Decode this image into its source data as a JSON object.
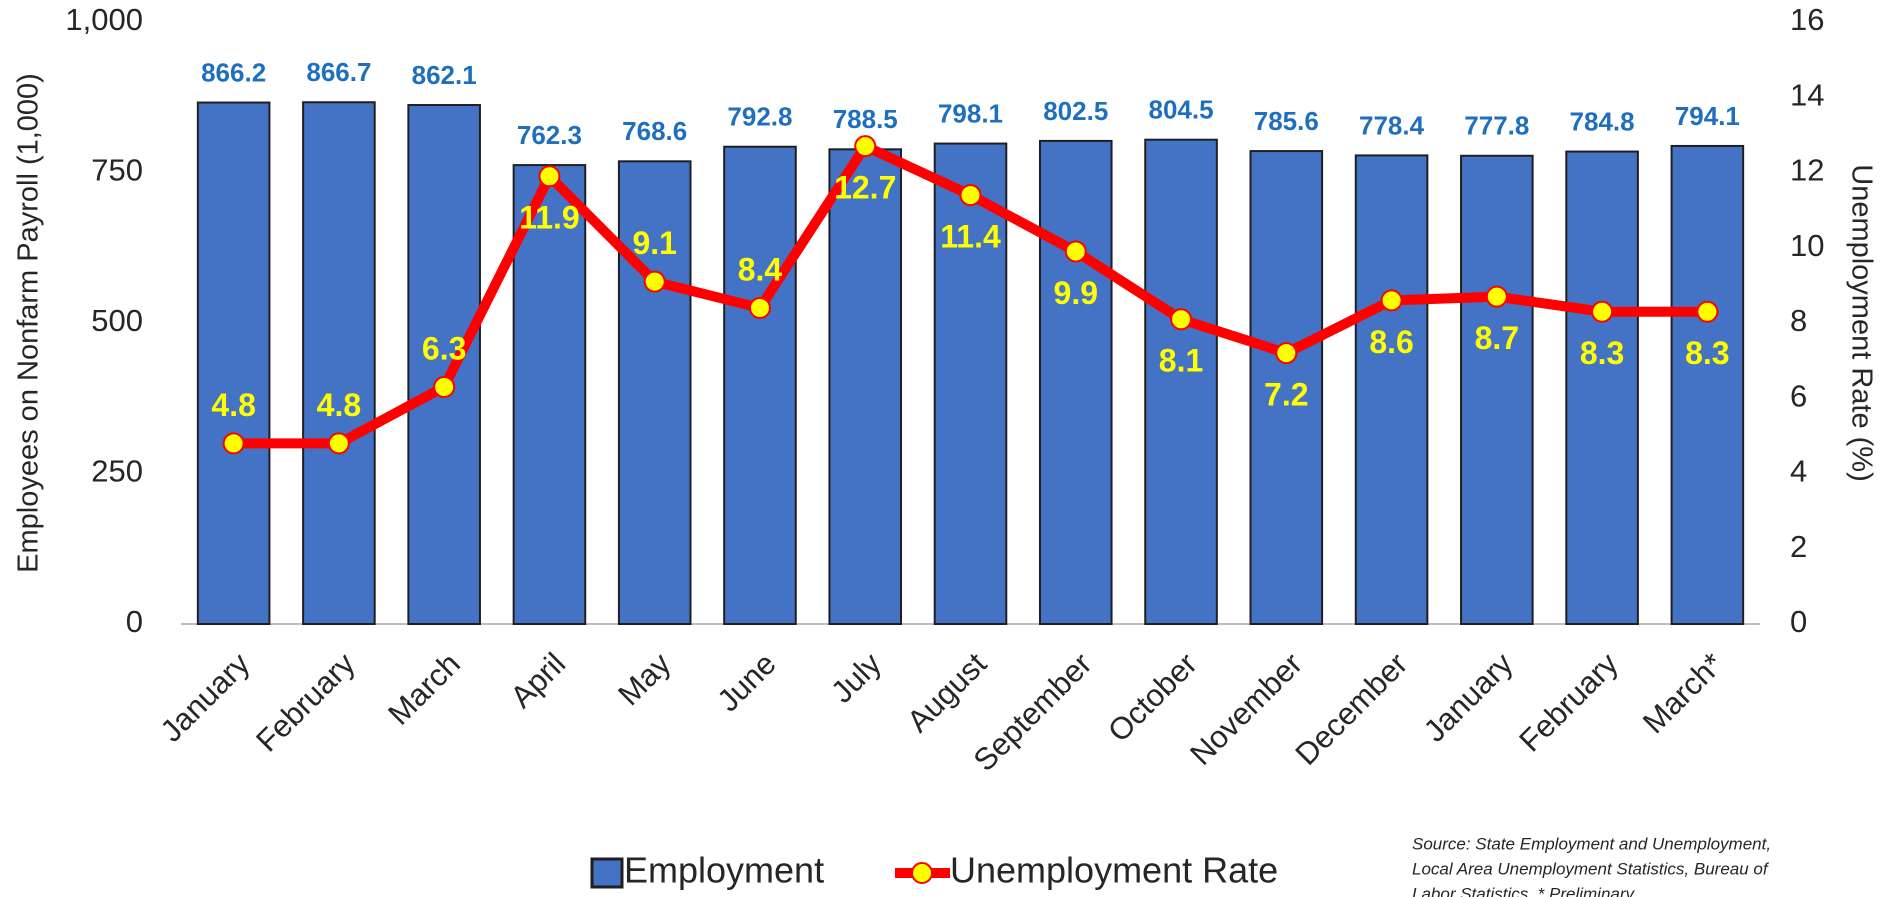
{
  "chart_data": {
    "type": "bar-line",
    "categories": [
      "January",
      "February",
      "March",
      "April",
      "May",
      "June",
      "July",
      "August",
      "September",
      "October",
      "November",
      "December",
      "January",
      "February",
      "March*"
    ],
    "series": [
      {
        "name": "Employment",
        "type": "bar",
        "color": "#4472c4",
        "values": [
          866.2,
          866.7,
          862.1,
          762.3,
          768.6,
          792.8,
          788.5,
          798.1,
          802.5,
          804.5,
          785.6,
          778.4,
          777.8,
          784.8,
          794.1
        ]
      },
      {
        "name": "Unemployment Rate",
        "type": "line",
        "axis": "y2",
        "color": "#ff0000",
        "marker_color": "#ffff00",
        "values": [
          4.8,
          4.8,
          6.3,
          11.9,
          9.1,
          8.4,
          12.7,
          11.4,
          9.9,
          8.1,
          7.2,
          8.6,
          8.7,
          8.3,
          8.3
        ]
      }
    ],
    "ylabel": "Employees on Nonfarm Payroll (1,000)",
    "y2label": "Unemployment Rate (%)",
    "ylim": [
      0,
      1000
    ],
    "yticks": [
      0,
      250,
      500,
      750,
      {
        "value": 1000,
        "label": "1,000"
      }
    ],
    "y2lim": [
      0,
      16
    ],
    "y2ticks": [
      0,
      2,
      4,
      6,
      8,
      10,
      12,
      14,
      16
    ],
    "legend": "bottom",
    "source": [
      "Source: State Employment and Unemployment,",
      "Local Area Unemployment Statistics, Bureau of",
      "Labor Statistics. * Preliminary"
    ]
  }
}
